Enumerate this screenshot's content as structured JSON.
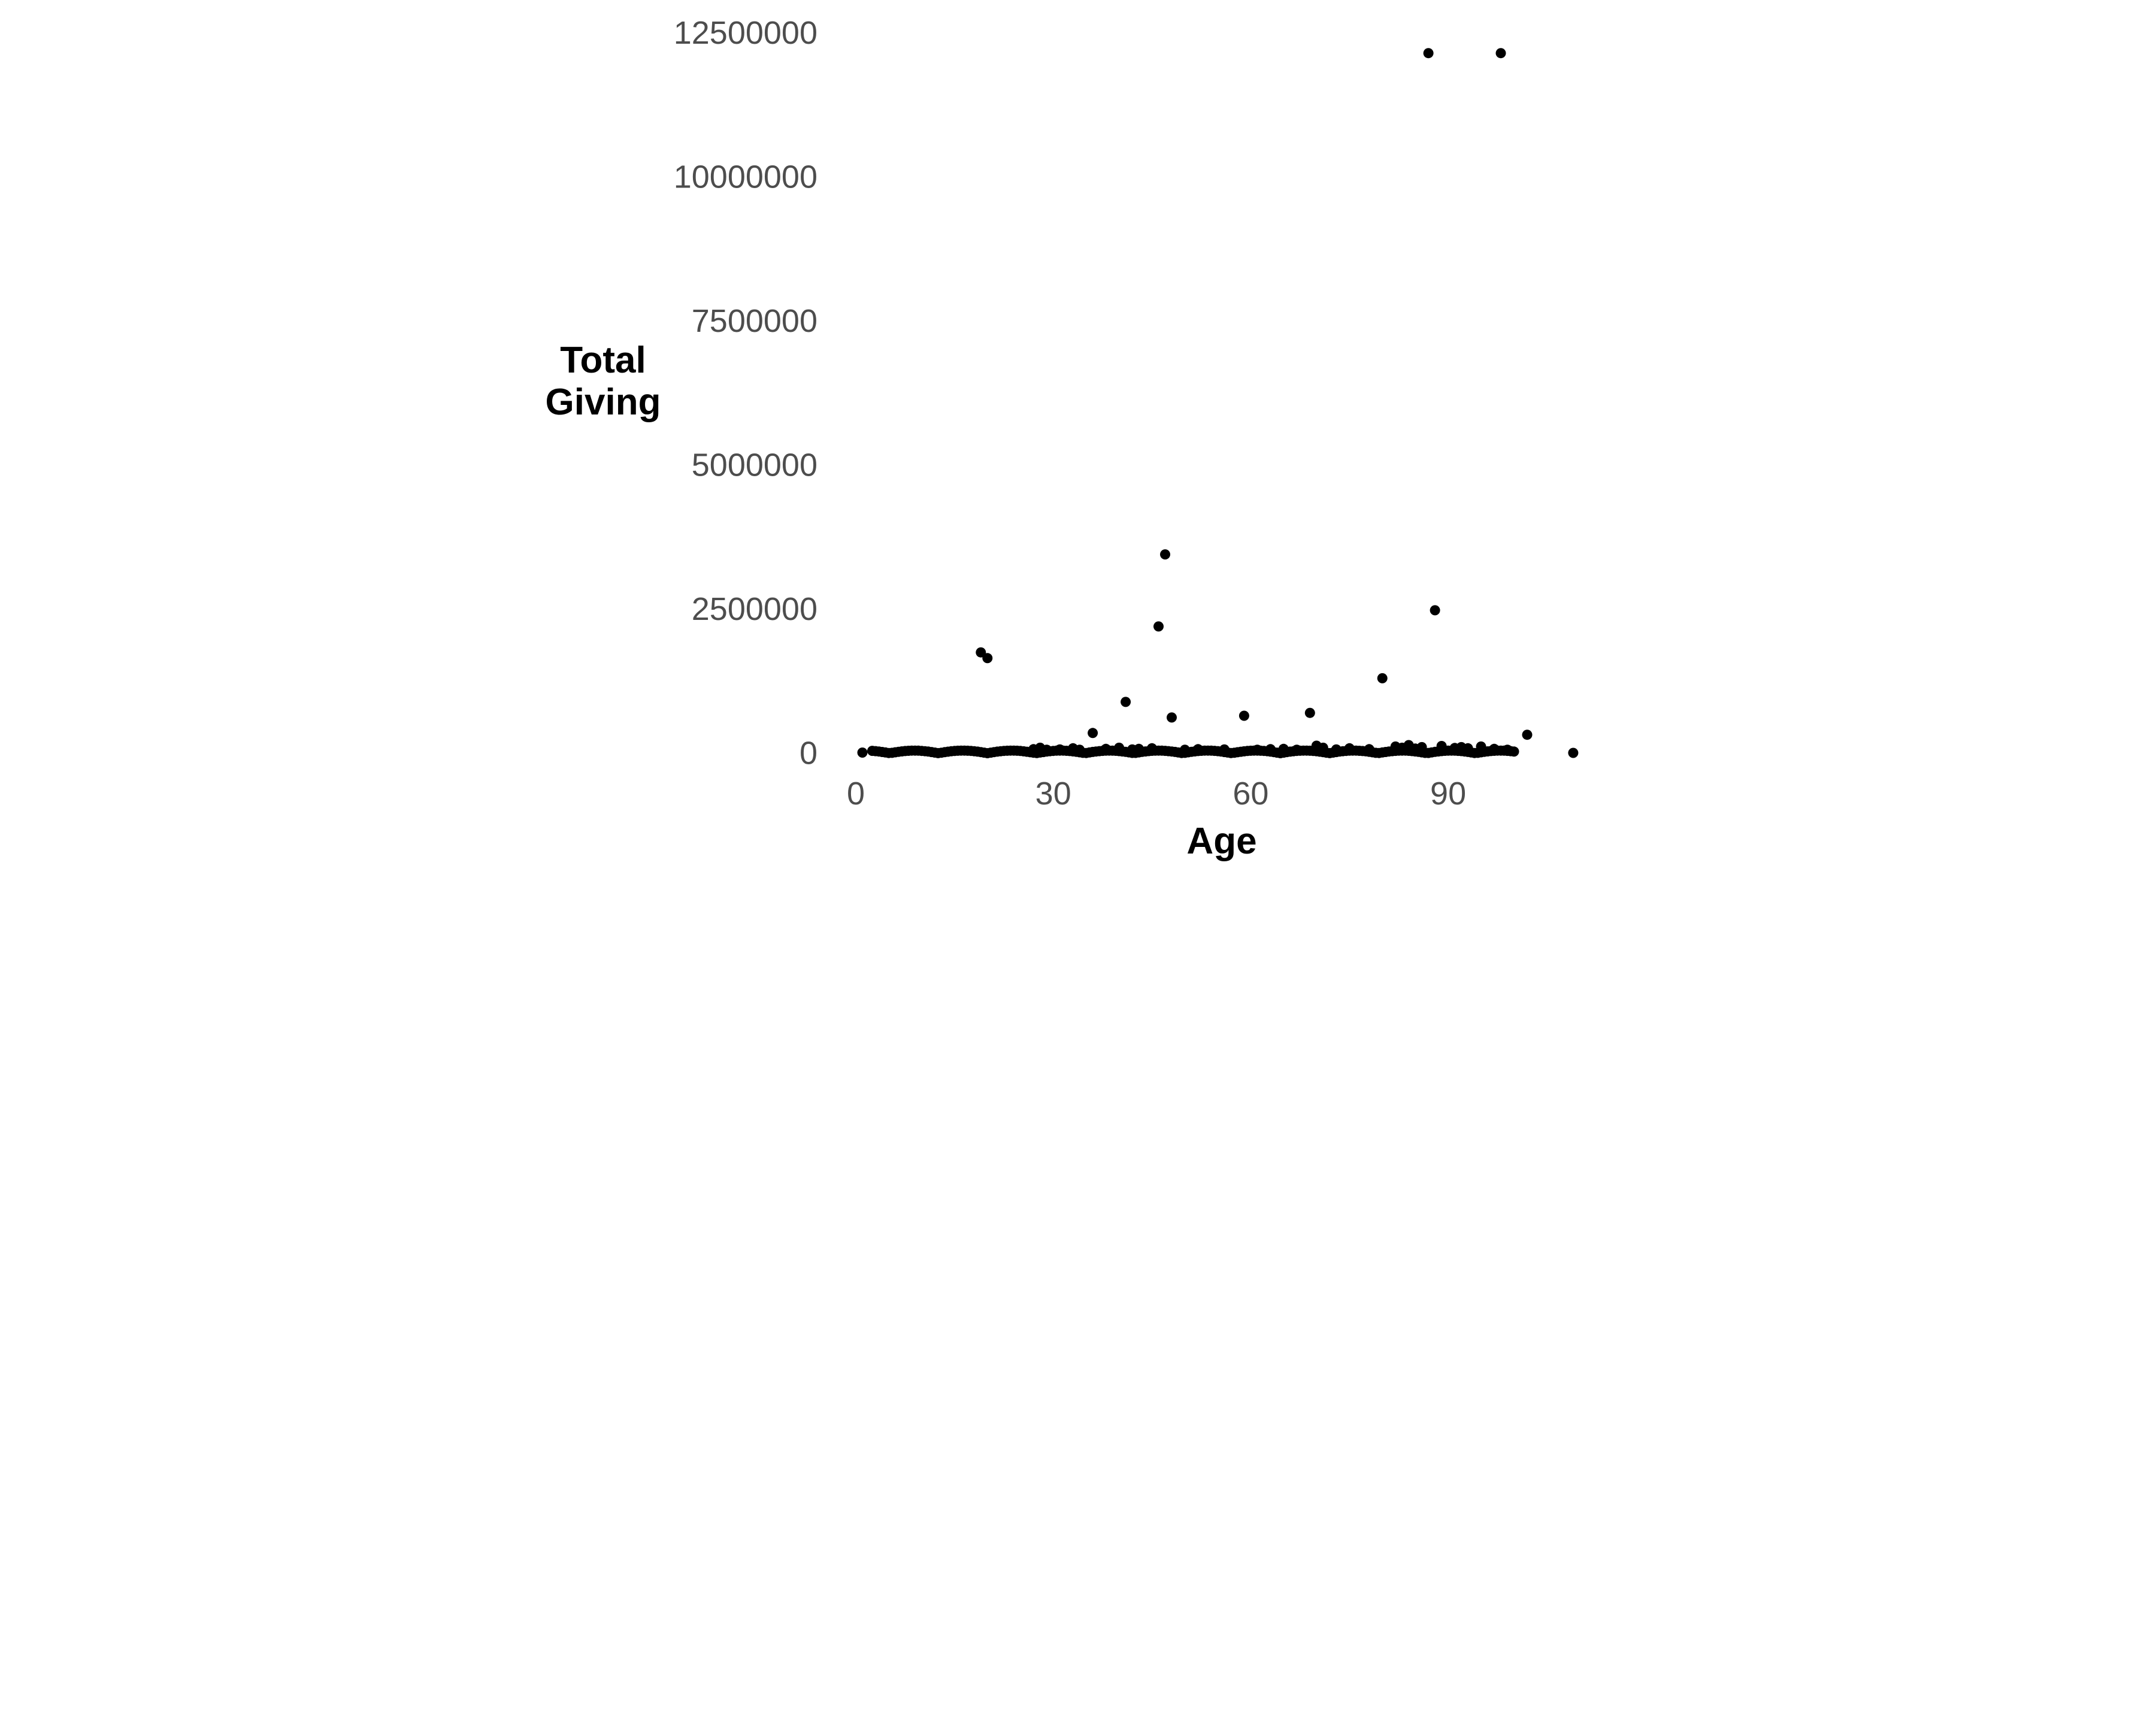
{
  "chart_data": {
    "type": "scatter",
    "title": "",
    "xlabel": "Age",
    "ylabel_lines": [
      "Total",
      "Giving"
    ],
    "x_ticks": [
      0,
      30,
      60,
      90
    ],
    "y_ticks": [
      0,
      2500000,
      5000000,
      7500000,
      10000000,
      12500000
    ],
    "y_tick_labels": [
      "0",
      "2500000",
      "5000000",
      "7500000",
      "10000000",
      "12500000"
    ],
    "x_tick_labels": [
      "0",
      "30",
      "60",
      "90"
    ],
    "xlim": [
      -2,
      112
    ],
    "ylim": [
      -600000,
      12900000
    ],
    "grid": "off",
    "legend": "none",
    "point_color": "#000000",
    "tick_label_color": "#4D4D4D",
    "axis_title_color": "#000000",
    "background_color": "#ffffff",
    "highlighted_points": [
      {
        "age": 1,
        "total_giving": 10000
      },
      {
        "age": 19,
        "total_giving": 1750000
      },
      {
        "age": 20,
        "total_giving": 1650000
      },
      {
        "age": 36,
        "total_giving": 350000
      },
      {
        "age": 41,
        "total_giving": 890000
      },
      {
        "age": 46,
        "total_giving": 2200000
      },
      {
        "age": 47,
        "total_giving": 3450000
      },
      {
        "age": 48,
        "total_giving": 620000
      },
      {
        "age": 59,
        "total_giving": 650000
      },
      {
        "age": 69,
        "total_giving": 700000
      },
      {
        "age": 80,
        "total_giving": 1300000
      },
      {
        "age": 87,
        "total_giving": 12150000
      },
      {
        "age": 88,
        "total_giving": 2480000
      },
      {
        "age": 98,
        "total_giving": 12150000
      },
      {
        "age": 102,
        "total_giving": 320000
      },
      {
        "age": 109,
        "total_giving": 5000
      }
    ],
    "second_row_points": [
      {
        "age": 27,
        "total_giving": 70000
      },
      {
        "age": 28,
        "total_giving": 95000
      },
      {
        "age": 29,
        "total_giving": 60000
      },
      {
        "age": 31,
        "total_giving": 65000
      },
      {
        "age": 33,
        "total_giving": 85000
      },
      {
        "age": 34,
        "total_giving": 60000
      },
      {
        "age": 38,
        "total_giving": 75000
      },
      {
        "age": 40,
        "total_giving": 95000
      },
      {
        "age": 42,
        "total_giving": 65000
      },
      {
        "age": 43,
        "total_giving": 75000
      },
      {
        "age": 45,
        "total_giving": 85000
      },
      {
        "age": 50,
        "total_giving": 60000
      },
      {
        "age": 52,
        "total_giving": 70000
      },
      {
        "age": 56,
        "total_giving": 65000
      },
      {
        "age": 61,
        "total_giving": 60000
      },
      {
        "age": 63,
        "total_giving": 70000
      },
      {
        "age": 65,
        "total_giving": 75000
      },
      {
        "age": 67,
        "total_giving": 60000
      },
      {
        "age": 70,
        "total_giving": 130000
      },
      {
        "age": 71,
        "total_giving": 95000
      },
      {
        "age": 73,
        "total_giving": 65000
      },
      {
        "age": 75,
        "total_giving": 85000
      },
      {
        "age": 78,
        "total_giving": 70000
      },
      {
        "age": 82,
        "total_giving": 115000
      },
      {
        "age": 83,
        "total_giving": 95000
      },
      {
        "age": 84,
        "total_giving": 140000
      },
      {
        "age": 85,
        "total_giving": 80000
      },
      {
        "age": 86,
        "total_giving": 105000
      },
      {
        "age": 89,
        "total_giving": 125000
      },
      {
        "age": 91,
        "total_giving": 90000
      },
      {
        "age": 92,
        "total_giving": 105000
      },
      {
        "age": 93,
        "total_giving": 85000
      },
      {
        "age": 95,
        "total_giving": 115000
      },
      {
        "age": 97,
        "total_giving": 75000
      },
      {
        "age": 99,
        "total_giving": 60000
      }
    ],
    "baseline_band": {
      "description": "dense overlapping row of donors with near-zero total giving",
      "age_start": 2.5,
      "age_end": 100,
      "age_step": 0.5,
      "value_min": 0,
      "value_max": 45000
    }
  }
}
